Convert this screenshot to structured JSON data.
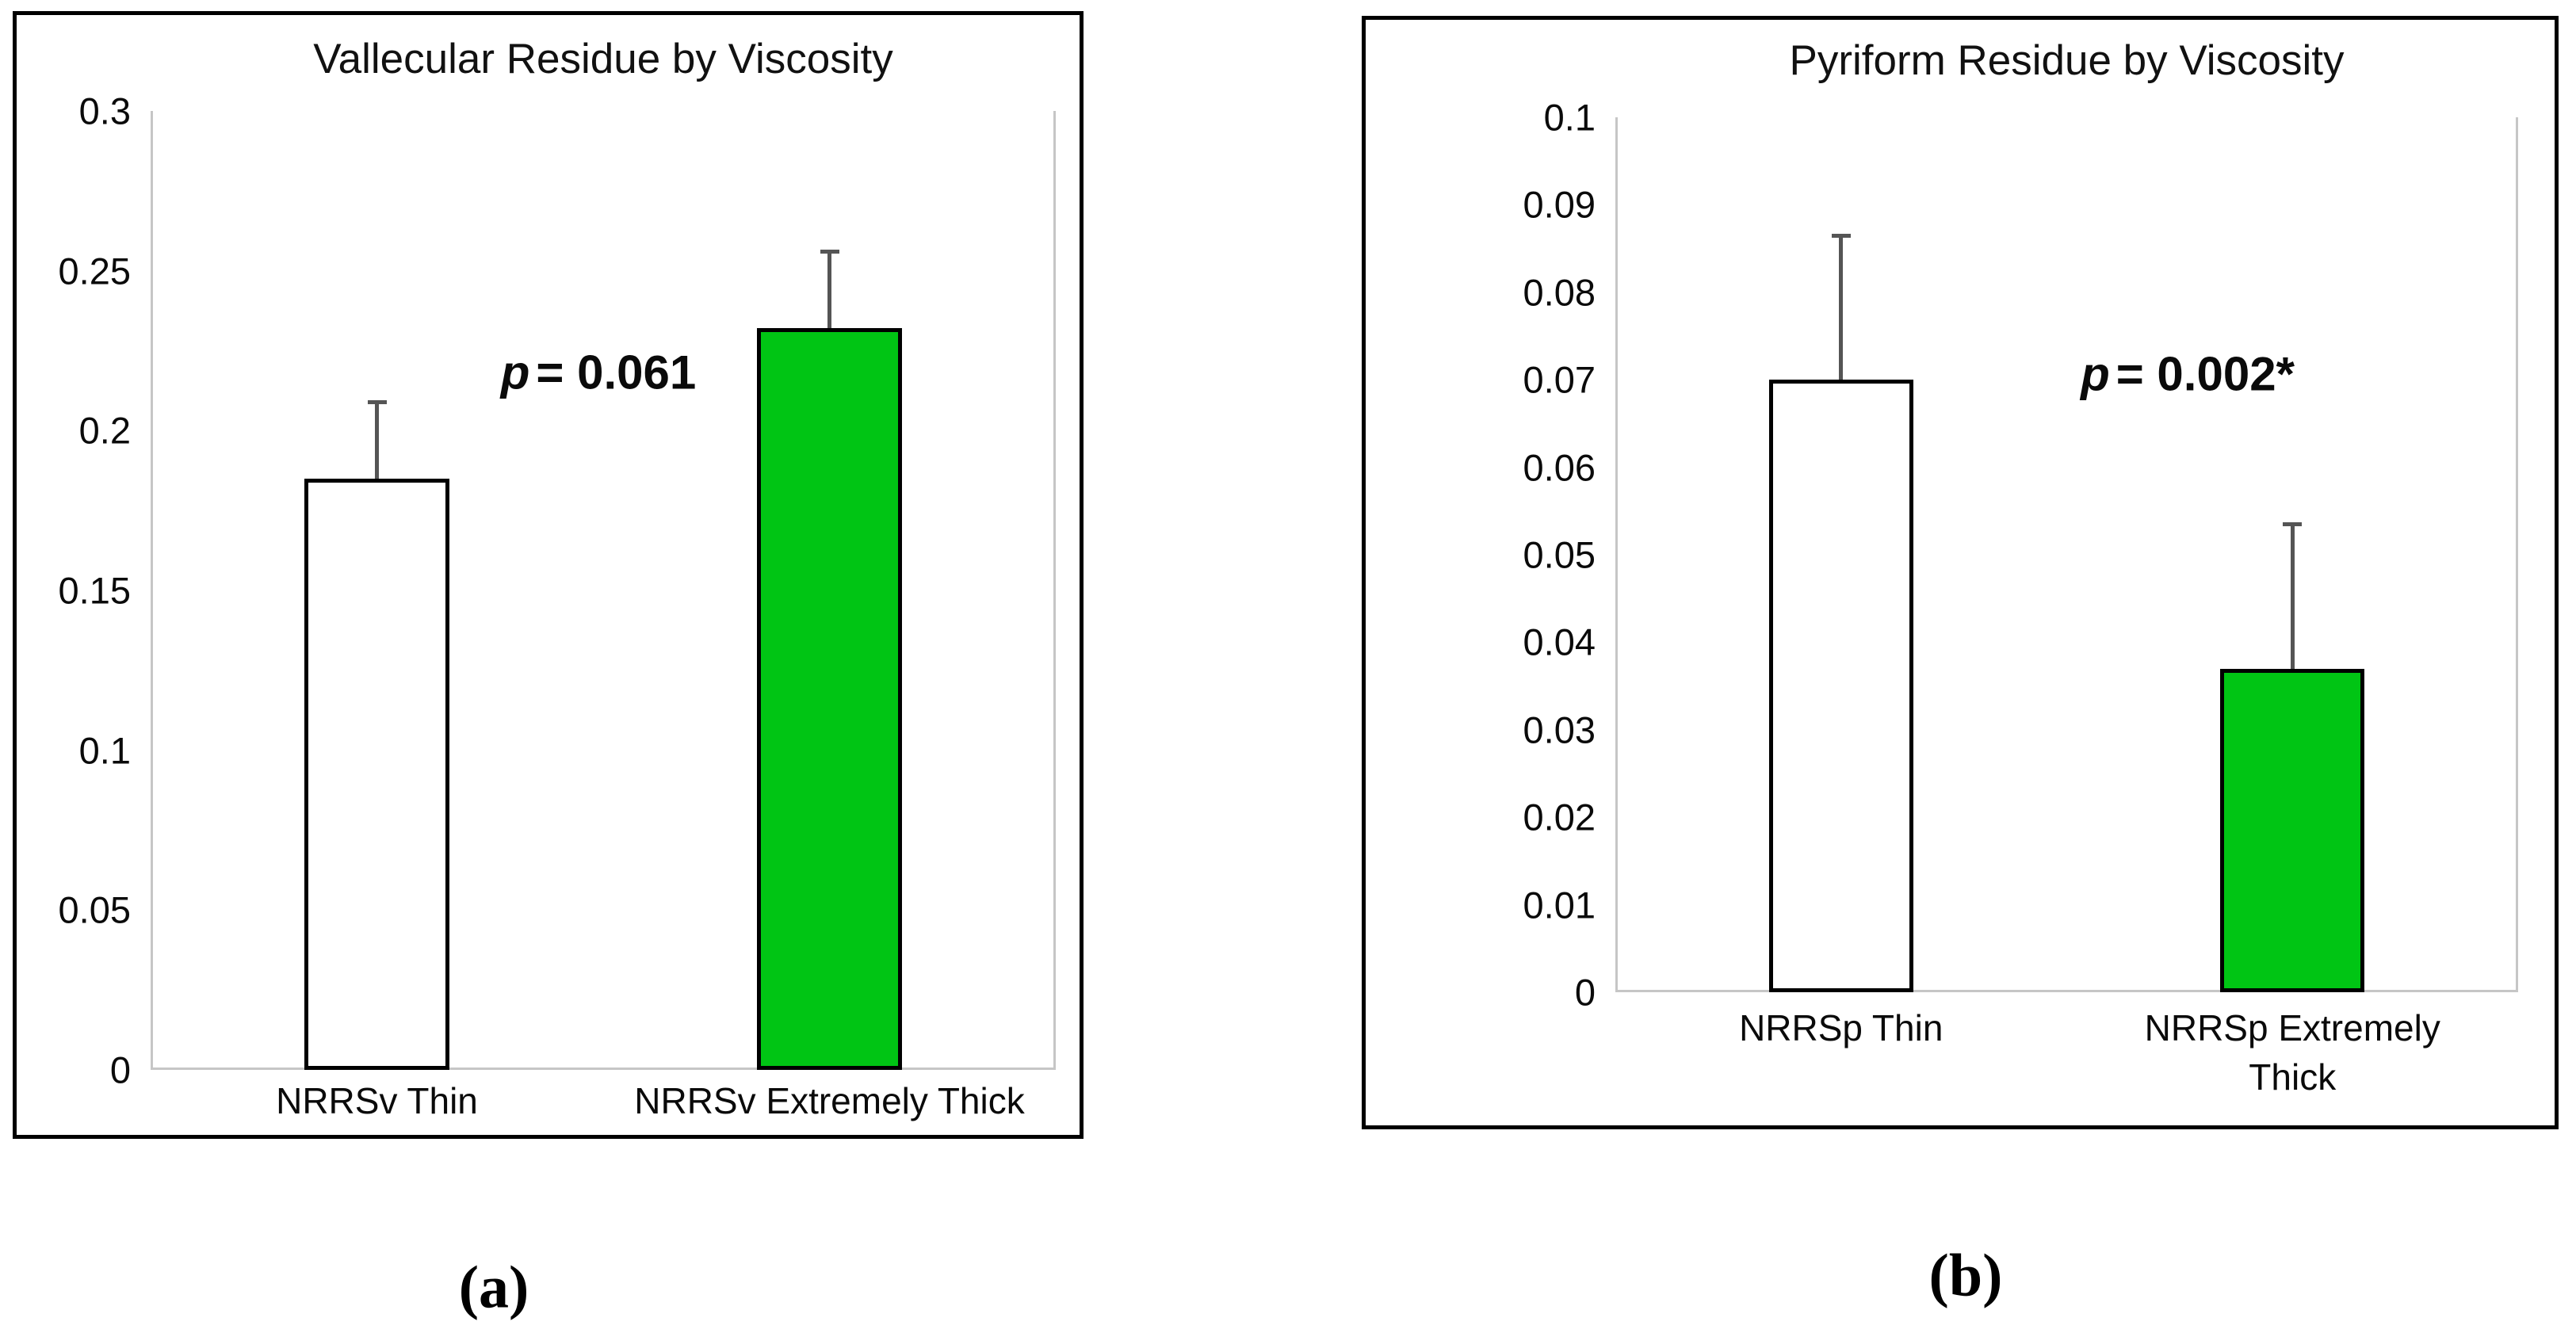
{
  "colors": {
    "bar_fill_thin": "#FFFFFF",
    "bar_fill_extremely_thick": "#00C514",
    "bar_outline": "#000000",
    "error_bar": "#555555",
    "axis_line": "#C6C6C6",
    "panel_border": "#000000",
    "text": "#000000"
  },
  "chart_data": [
    {
      "type": "bar",
      "title": "Vallecular Residue by Viscosity",
      "caption": "(a)",
      "categories": [
        "NRRSv Thin",
        "NRRSv Extremely Thick"
      ],
      "values": [
        0.185,
        0.232
      ],
      "errors_plus": [
        0.024,
        0.024
      ],
      "bar_fills": [
        "#FFFFFF",
        "#00C514"
      ],
      "annotation": {
        "symbol": "p",
        "text": "= 0.061"
      },
      "xlabel": "",
      "ylabel": "",
      "ymax": 0.3,
      "ylim": [
        0,
        0.3
      ],
      "ytick_step": 0.05,
      "yticks": [
        "0.3",
        "0.25",
        "0.2",
        "0.15",
        "0.1",
        "0.05",
        "0"
      ],
      "grid": false,
      "legend": false
    },
    {
      "type": "bar",
      "title": "Pyriform Residue by Viscosity",
      "caption": "(b)",
      "categories": [
        "NRRSp Thin",
        "NRRSp Extremely Thick"
      ],
      "values": [
        0.07,
        0.037
      ],
      "errors_plus": [
        0.0165,
        0.0165
      ],
      "bar_fills": [
        "#FFFFFF",
        "#00C514"
      ],
      "annotation": {
        "symbol": "p",
        "text": "= 0.002*"
      },
      "xlabel": "",
      "ylabel": "",
      "ymax": 0.1,
      "ylim": [
        0,
        0.1
      ],
      "ytick_step": 0.01,
      "yticks": [
        "0.1",
        "0.09",
        "0.08",
        "0.07",
        "0.06",
        "0.05",
        "0.04",
        "0.03",
        "0.02",
        "0.01",
        "0"
      ],
      "grid": false,
      "legend": false
    }
  ]
}
